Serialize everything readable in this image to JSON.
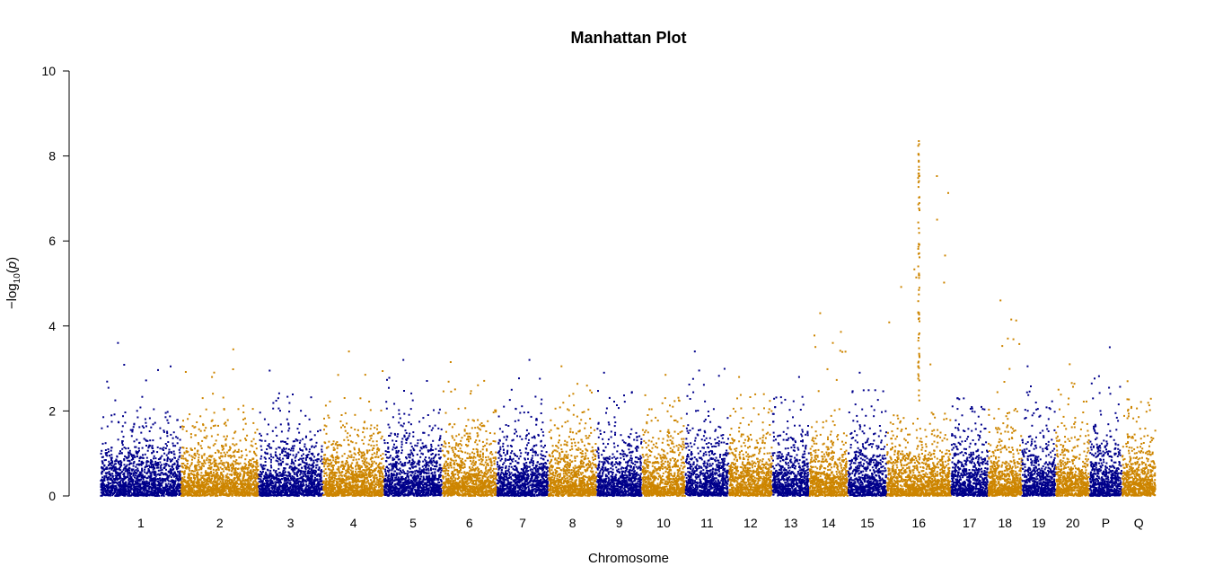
{
  "chart_data": {
    "type": "scatter",
    "title": "Manhattan Plot",
    "xlabel": "Chromosome",
    "ylabel": "−log₁₀(p)",
    "ylabel_parts": {
      "prefix": "−log",
      "sub": "10",
      "open": "(",
      "var": "p",
      "close": ")"
    },
    "ylim": [
      0,
      10
    ],
    "yticks": [
      0,
      2,
      4,
      6,
      8,
      10
    ],
    "grid": false,
    "legend": "none",
    "colors": [
      "#00008b",
      "#cd8500"
    ],
    "chromosomes": [
      {
        "label": "1",
        "color": "#00008b",
        "start_mb": 0,
        "end_mb": 250,
        "peak": 3.6
      },
      {
        "label": "2",
        "color": "#cd8500",
        "start_mb": 250,
        "end_mb": 490,
        "peak": 3.45
      },
      {
        "label": "3",
        "color": "#00008b",
        "start_mb": 490,
        "end_mb": 690,
        "peak": 2.95
      },
      {
        "label": "4",
        "color": "#cd8500",
        "start_mb": 690,
        "end_mb": 880,
        "peak": 3.4
      },
      {
        "label": "5",
        "color": "#00008b",
        "start_mb": 880,
        "end_mb": 1060,
        "peak": 3.2
      },
      {
        "label": "6",
        "color": "#cd8500",
        "start_mb": 1060,
        "end_mb": 1230,
        "peak": 3.15
      },
      {
        "label": "7",
        "color": "#00008b",
        "start_mb": 1230,
        "end_mb": 1390,
        "peak": 3.2
      },
      {
        "label": "8",
        "color": "#cd8500",
        "start_mb": 1390,
        "end_mb": 1540,
        "peak": 3.05
      },
      {
        "label": "9",
        "color": "#00008b",
        "start_mb": 1540,
        "end_mb": 1680,
        "peak": 2.9
      },
      {
        "label": "10",
        "color": "#cd8500",
        "start_mb": 1680,
        "end_mb": 1815,
        "peak": 2.85
      },
      {
        "label": "11",
        "color": "#00008b",
        "start_mb": 1815,
        "end_mb": 1950,
        "peak": 3.4
      },
      {
        "label": "12",
        "color": "#cd8500",
        "start_mb": 1950,
        "end_mb": 2085,
        "peak": 2.8
      },
      {
        "label": "13",
        "color": "#00008b",
        "start_mb": 2085,
        "end_mb": 2200,
        "peak": 2.8
      },
      {
        "label": "14",
        "color": "#cd8500",
        "start_mb": 2200,
        "end_mb": 2320,
        "peak": 4.3
      },
      {
        "label": "15",
        "color": "#00008b",
        "start_mb": 2320,
        "end_mb": 2440,
        "peak": 2.9
      },
      {
        "label": "16",
        "color": "#cd8500",
        "start_mb": 2440,
        "end_mb": 2640,
        "peak": 8.35
      },
      {
        "label": "17",
        "color": "#00008b",
        "start_mb": 2640,
        "end_mb": 2755,
        "peak": 2.3
      },
      {
        "label": "18",
        "color": "#cd8500",
        "start_mb": 2755,
        "end_mb": 2860,
        "peak": 4.6
      },
      {
        "label": "19",
        "color": "#00008b",
        "start_mb": 2860,
        "end_mb": 2965,
        "peak": 3.05
      },
      {
        "label": "20",
        "color": "#cd8500",
        "start_mb": 2965,
        "end_mb": 3070,
        "peak": 3.1
      },
      {
        "label": "P",
        "color": "#00008b",
        "start_mb": 3070,
        "end_mb": 3170,
        "peak": 3.5
      },
      {
        "label": "Q",
        "color": "#cd8500",
        "start_mb": 3170,
        "end_mb": 3275,
        "peak": 2.7
      }
    ]
  }
}
